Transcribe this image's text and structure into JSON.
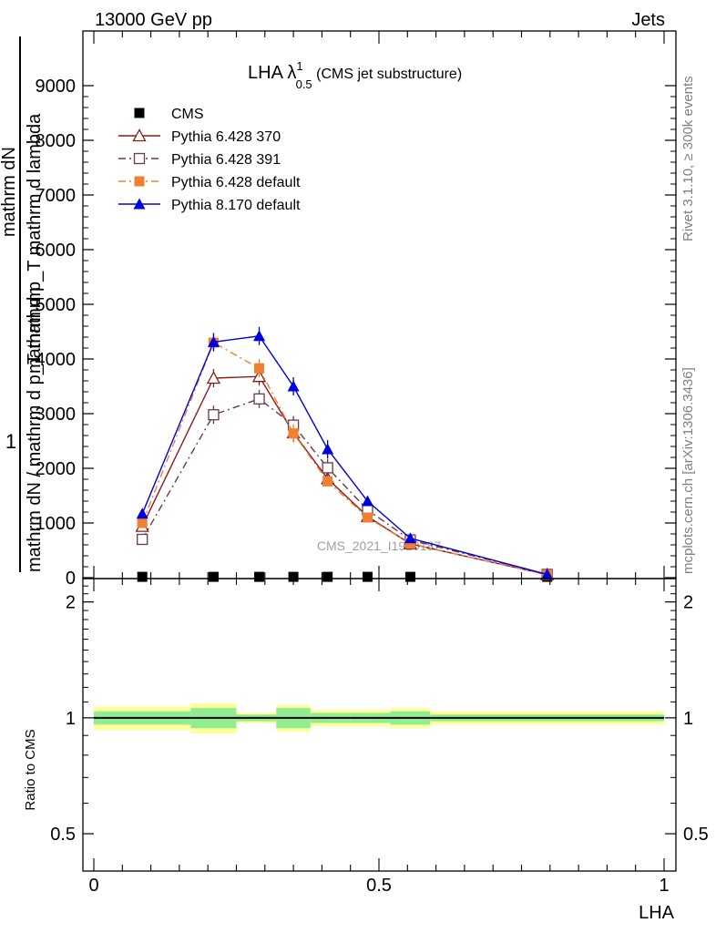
{
  "header": {
    "left": "13000 GeV pp",
    "right": "Jets"
  },
  "side_labels": {
    "rivet": "Rivet 3.1.10, ≥ 300k events",
    "mcplots": "mcplots.cern.ch [arXiv:1306.3436]"
  },
  "watermark": "CMS_2021_I1920187",
  "chart_data": {
    "type": "line",
    "title": {
      "main": "LHA λ",
      "sup": "1",
      "sub": "0.5",
      "suffix": " (CMS jet substructure)"
    },
    "xlabel": "LHA",
    "ylabel": {
      "one": "1",
      "denominator": "mathrm dN / mathrm d p_T mathrm",
      "numerator": "mathrm dN",
      "denominator2": "mathrm d p_T mathrm d lambda"
    },
    "xlim": [
      0,
      1
    ],
    "ylim": [
      0,
      9000
    ],
    "xticks": [
      0,
      0.5,
      1
    ],
    "xtick_labels": [
      "0",
      "0.5",
      "1"
    ],
    "yticks": [
      0,
      1000,
      2000,
      3000,
      4000,
      5000,
      6000,
      7000,
      8000,
      9000
    ],
    "ytick_labels": [
      "0",
      "1000",
      "2000",
      "3000",
      "4000",
      "5000",
      "6000",
      "7000",
      "8000",
      "9000"
    ],
    "grid": false,
    "legend_position": "top-left",
    "x": [
      0.085,
      0.21,
      0.29,
      0.35,
      0.41,
      0.48,
      0.555,
      0.795
    ],
    "series": [
      {
        "name": "CMS",
        "color": "#000000",
        "marker": "square-filled",
        "dash": "none",
        "values": [
          15,
          15,
          15,
          15,
          15,
          15,
          15,
          15
        ]
      },
      {
        "name": "Pythia 6.428 370",
        "color": "#8b1a1a",
        "marker": "triangle-open",
        "dash": "solid",
        "values": [
          940,
          3650,
          3680,
          2650,
          1810,
          1120,
          620,
          55
        ]
      },
      {
        "name": "Pythia 6.428 391",
        "color": "#6b3a47",
        "marker": "square-open",
        "dash": "dashdot",
        "values": [
          700,
          2980,
          3270,
          2790,
          2010,
          1240,
          690,
          60
        ]
      },
      {
        "name": "Pythia 6.428 default",
        "color": "#f08030",
        "marker": "square-filled",
        "dash": "dashdot",
        "values": [
          1000,
          4300,
          3830,
          2640,
          1760,
          1100,
          620,
          55
        ]
      },
      {
        "name": "Pythia 8.170 default",
        "color": "#0000e0",
        "marker": "triangle-filled",
        "dash": "solid",
        "values": [
          1170,
          4310,
          4420,
          3500,
          2350,
          1400,
          720,
          60
        ]
      }
    ],
    "ratio": {
      "ylabel": "Ratio to CMS",
      "ylim": [
        0.4,
        2.3
      ],
      "yticks": [
        0.5,
        1,
        2
      ],
      "ytick_labels": [
        "0.5",
        "1",
        "2"
      ],
      "scale": "log",
      "bin_edges": [
        0,
        0.17,
        0.25,
        0.32,
        0.38,
        0.45,
        0.52,
        0.59,
        1.0
      ],
      "inner_band": [
        0.04,
        0.06,
        0.02,
        0.06,
        0.03,
        0.03,
        0.04,
        0.02
      ],
      "outer_band": [
        0.07,
        0.09,
        0.03,
        0.08,
        0.05,
        0.05,
        0.06,
        0.04
      ],
      "colors": {
        "inner": "#90ee90",
        "outer": "#ffff99"
      }
    }
  }
}
